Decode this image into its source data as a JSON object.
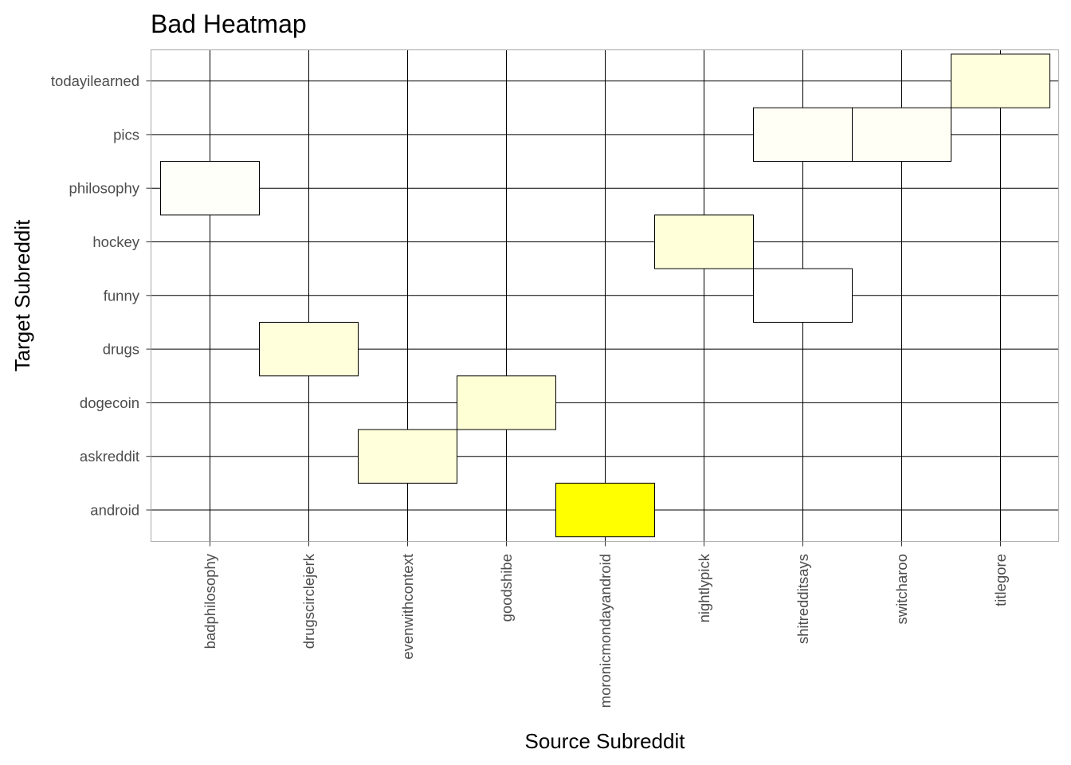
{
  "chart_data": {
    "type": "heatmap",
    "title": "Bad Heatmap",
    "xlabel": "Source Subreddit",
    "ylabel": "Target Subreddit",
    "x_categories": [
      "badphilosophy",
      "drugscirclejerk",
      "evenwithcontext",
      "goodshibe",
      "moronicmondayandroid",
      "nightlypick",
      "shitredditsays",
      "switcharoo",
      "titlegore"
    ],
    "y_categories": [
      "android",
      "askreddit",
      "dogecoin",
      "drugs",
      "funny",
      "hockey",
      "philosophy",
      "pics",
      "todayilearned"
    ],
    "color_scale": {
      "low": "#ffffff",
      "high": "#ffff00"
    },
    "cells": [
      {
        "x": "badphilosophy",
        "y": "philosophy",
        "value": 0.02
      },
      {
        "x": "drugscirclejerk",
        "y": "drugs",
        "value": 0.14
      },
      {
        "x": "evenwithcontext",
        "y": "askreddit",
        "value": 0.14
      },
      {
        "x": "goodshibe",
        "y": "dogecoin",
        "value": 0.16
      },
      {
        "x": "moronicmondayandroid",
        "y": "android",
        "value": 1.0
      },
      {
        "x": "nightlypick",
        "y": "hockey",
        "value": 0.15
      },
      {
        "x": "shitredditsays",
        "y": "pics",
        "value": 0.04
      },
      {
        "x": "shitredditsays",
        "y": "funny",
        "value": 0.0
      },
      {
        "x": "switcharoo",
        "y": "pics",
        "value": 0.04
      },
      {
        "x": "titlegore",
        "y": "todayilearned",
        "value": 0.13
      }
    ],
    "grid": true,
    "legend": "none"
  }
}
